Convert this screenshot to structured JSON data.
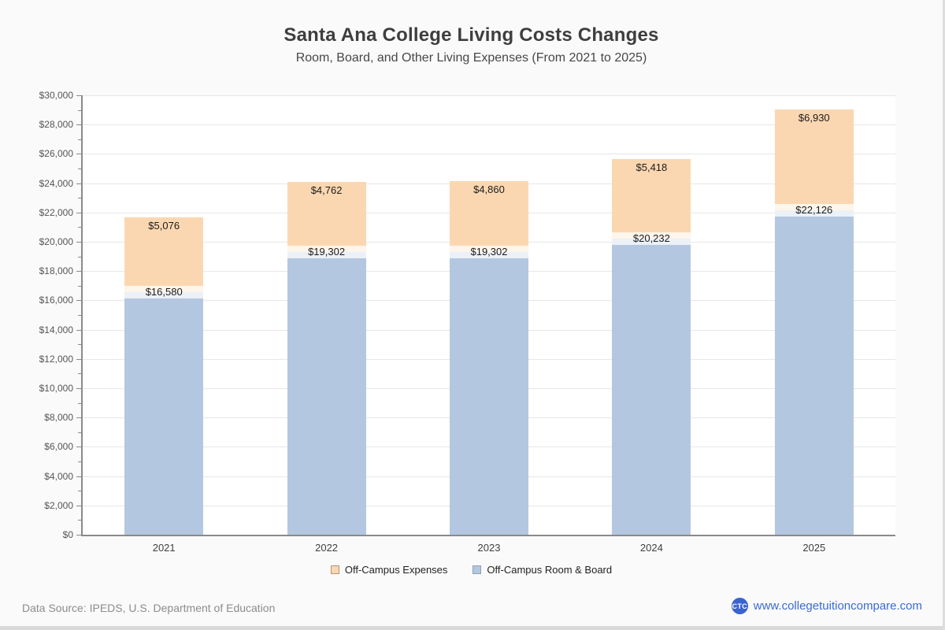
{
  "header": {
    "title": "Santa Ana College Living Costs Changes",
    "subtitle": "Room, Board, and Other Living Expenses (From 2021 to 2025)"
  },
  "chart_data": {
    "type": "bar",
    "stacked": true,
    "title": "Santa Ana College Living Costs Changes",
    "subtitle": "Room, Board, and Other Living Expenses (From 2021 to 2025)",
    "categories": [
      "2021",
      "2022",
      "2023",
      "2024",
      "2025"
    ],
    "series": [
      {
        "name": "Off-Campus Expenses",
        "color": "#fbd7b1",
        "swatch_border": "#b5917a",
        "values": [
          5076,
          4762,
          4860,
          5418,
          6930
        ],
        "labels": [
          "$5,076",
          "$4,762",
          "$4,860",
          "$5,418",
          "$6,930"
        ]
      },
      {
        "name": "Off-Campus Room & Board",
        "color": "#b4c7e0",
        "swatch_border": "#8fa0b8",
        "values": [
          16580,
          19302,
          19302,
          20232,
          22126
        ],
        "labels": [
          "$16,580",
          "$19,302",
          "$19,302",
          "$20,232",
          "$22,126"
        ]
      }
    ],
    "stack_order": [
      "Off-Campus Room & Board",
      "Off-Campus Expenses"
    ],
    "ylim": [
      0,
      30000
    ],
    "y_tick_step": 2000,
    "y_minor_step": 1000,
    "grid": true,
    "legend_position": "bottom",
    "value_prefix": "$",
    "y_ticks": [
      {
        "value": 0,
        "label": "$0"
      },
      {
        "value": 2000,
        "label": "$2,000"
      },
      {
        "value": 4000,
        "label": "$4,000"
      },
      {
        "value": 6000,
        "label": "$6,000"
      },
      {
        "value": 8000,
        "label": "$8,000"
      },
      {
        "value": 10000,
        "label": "$10,000"
      },
      {
        "value": 12000,
        "label": "$12,000"
      },
      {
        "value": 14000,
        "label": "$14,000"
      },
      {
        "value": 16000,
        "label": "$16,000"
      },
      {
        "value": 18000,
        "label": "$18,000"
      },
      {
        "value": 20000,
        "label": "$20,000"
      },
      {
        "value": 22000,
        "label": "$22,000"
      },
      {
        "value": 24000,
        "label": "$24,000"
      },
      {
        "value": 26000,
        "label": "$26,000"
      },
      {
        "value": 28000,
        "label": "$28,000"
      },
      {
        "value": 30000,
        "label": "$30,000"
      }
    ]
  },
  "footer": {
    "source_text": "Data Source: IPEDS, U.S. Department of Education",
    "logo_text": "CTC",
    "logo_color": "#3a63cf",
    "website": "www.collegetuitioncompare.com",
    "link_color": "#3b6bd3"
  }
}
